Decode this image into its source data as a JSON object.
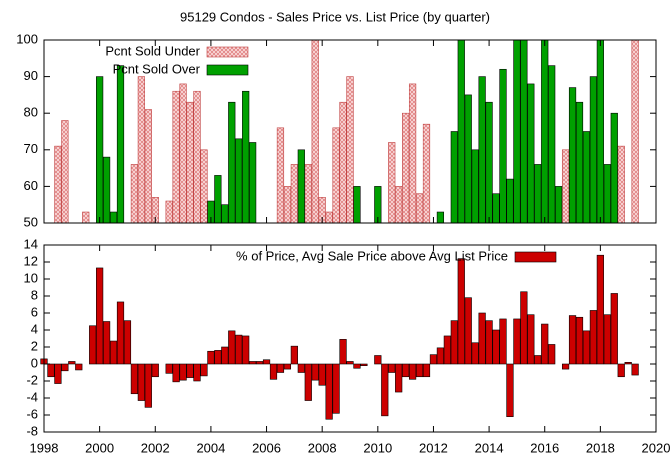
{
  "chart_data": [
    {
      "type": "bar",
      "title": "95129 Condos - Sales Price vs. List Price (by quarter)",
      "x": [
        1998,
        1998.25,
        1998.5,
        1998.75,
        1999,
        1999.25,
        1999.5,
        1999.75,
        2000,
        2000.25,
        2000.5,
        2000.75,
        2001,
        2001.25,
        2001.5,
        2001.75,
        2002,
        2002.25,
        2002.5,
        2002.75,
        2003,
        2003.25,
        2003.5,
        2003.75,
        2004,
        2004.25,
        2004.5,
        2004.75,
        2005,
        2005.25,
        2005.5,
        2005.75,
        2006,
        2006.25,
        2006.5,
        2006.75,
        2007,
        2007.25,
        2007.5,
        2007.75,
        2008,
        2008.25,
        2008.5,
        2008.75,
        2009,
        2009.25,
        2009.5,
        2009.75,
        2010,
        2010.25,
        2010.5,
        2010.75,
        2011,
        2011.25,
        2011.5,
        2011.75,
        2012,
        2012.25,
        2012.5,
        2012.75,
        2013,
        2013.25,
        2013.5,
        2013.75,
        2014,
        2014.25,
        2014.5,
        2014.75,
        2015,
        2015.25,
        2015.5,
        2015.75,
        2016,
        2016.25,
        2016.5,
        2016.75,
        2017,
        2017.25,
        2017.5,
        2017.75,
        2018,
        2018.25,
        2018.5,
        2018.75,
        2019,
        2019.25,
        2019.5,
        2019.75
      ],
      "series": [
        {
          "name": "Pcnt Sold Under",
          "color": "#f4a8a8",
          "values": [
            null,
            null,
            71,
            78,
            null,
            null,
            53,
            null,
            null,
            null,
            null,
            null,
            null,
            66,
            90,
            81,
            57,
            null,
            56,
            86,
            88,
            83,
            86,
            70,
            null,
            null,
            null,
            null,
            null,
            null,
            null,
            null,
            null,
            null,
            76,
            60,
            66,
            null,
            66,
            100,
            57,
            53,
            76,
            83,
            90,
            null,
            null,
            null,
            null,
            null,
            72,
            60,
            80,
            88,
            58,
            77,
            null,
            null,
            null,
            null,
            null,
            null,
            null,
            null,
            null,
            null,
            null,
            null,
            null,
            null,
            null,
            null,
            null,
            null,
            null,
            70,
            null,
            null,
            null,
            null,
            null,
            null,
            null,
            71,
            null,
            100,
            null,
            null
          ]
        },
        {
          "name": "Pcnt Sold Over",
          "color": "#00a000",
          "values": [
            null,
            null,
            null,
            null,
            null,
            null,
            null,
            null,
            90,
            68,
            53,
            93,
            null,
            null,
            null,
            null,
            null,
            null,
            null,
            null,
            null,
            null,
            null,
            null,
            56,
            63,
            55,
            83,
            73,
            86,
            72,
            null,
            null,
            null,
            null,
            null,
            null,
            70,
            null,
            null,
            null,
            null,
            null,
            null,
            null,
            60,
            null,
            null,
            60,
            null,
            null,
            null,
            null,
            null,
            null,
            null,
            null,
            53,
            null,
            75,
            100,
            85,
            70,
            90,
            83,
            58,
            92,
            62,
            100,
            100,
            88,
            66,
            100,
            93,
            60,
            null,
            87,
            83,
            75,
            90,
            100,
            66,
            80,
            null,
            null,
            null,
            null,
            null
          ]
        }
      ],
      "xlim": [
        1998,
        2020
      ],
      "xticks": [
        1998,
        2000,
        2002,
        2004,
        2006,
        2008,
        2010,
        2012,
        2014,
        2016,
        2018,
        2020
      ],
      "ylim": [
        50,
        100
      ],
      "yticks": [
        50,
        60,
        70,
        80,
        90,
        100
      ],
      "legend": "top-left"
    },
    {
      "type": "bar",
      "x": [
        1998,
        1998.25,
        1998.5,
        1998.75,
        1999,
        1999.25,
        1999.5,
        1999.75,
        2000,
        2000.25,
        2000.5,
        2000.75,
        2001,
        2001.25,
        2001.5,
        2001.75,
        2002,
        2002.25,
        2002.5,
        2002.75,
        2003,
        2003.25,
        2003.5,
        2003.75,
        2004,
        2004.25,
        2004.5,
        2004.75,
        2005,
        2005.25,
        2005.5,
        2005.75,
        2006,
        2006.25,
        2006.5,
        2006.75,
        2007,
        2007.25,
        2007.5,
        2007.75,
        2008,
        2008.25,
        2008.5,
        2008.75,
        2009,
        2009.25,
        2009.5,
        2009.75,
        2010,
        2010.25,
        2010.5,
        2010.75,
        2011,
        2011.25,
        2011.5,
        2011.75,
        2012,
        2012.25,
        2012.5,
        2012.75,
        2013,
        2013.25,
        2013.5,
        2013.75,
        2014,
        2014.25,
        2014.5,
        2014.75,
        2015,
        2015.25,
        2015.5,
        2015.75,
        2016,
        2016.25,
        2016.5,
        2016.75,
        2017,
        2017.25,
        2017.5,
        2017.75,
        2018,
        2018.25,
        2018.5,
        2018.75,
        2019,
        2019.25,
        2019.5,
        2019.75
      ],
      "series": [
        {
          "name": "% of Price, Avg Sale Price above Avg List Price",
          "color": "#cc0000",
          "values": [
            0.6,
            -1.5,
            -2.3,
            -0.8,
            0.3,
            -0.7,
            null,
            4.5,
            11.3,
            5.0,
            2.7,
            7.3,
            5.1,
            -3.5,
            -4.3,
            -5.1,
            -1.5,
            null,
            -1.1,
            -2.1,
            -1.9,
            -1.6,
            -2.0,
            -1.4,
            1.5,
            1.6,
            2.0,
            3.9,
            3.4,
            3.3,
            0.3,
            0.3,
            0.5,
            -1.8,
            -1.0,
            -0.6,
            2.1,
            -1.0,
            -4.3,
            -1.9,
            -2.5,
            -6.5,
            -5.8,
            2.9,
            0.3,
            -0.5,
            -0.2,
            null,
            1.0,
            -6.1,
            -1.0,
            -3.3,
            -1.5,
            -1.8,
            -1.5,
            -1.5,
            1.1,
            1.9,
            3.3,
            5.1,
            12.4,
            7.8,
            2.5,
            6.0,
            5.1,
            4.0,
            5.3,
            -6.2,
            5.3,
            8.5,
            5.8,
            1.0,
            4.7,
            2.3,
            null,
            -0.6,
            5.7,
            5.5,
            3.9,
            6.3,
            12.8,
            5.8,
            8.3,
            -1.5,
            0.2,
            -1.3,
            null,
            null
          ]
        }
      ],
      "xlim": [
        1998,
        2020
      ],
      "xticks": [
        1998,
        2000,
        2002,
        2004,
        2006,
        2008,
        2010,
        2012,
        2014,
        2016,
        2018,
        2020
      ],
      "ylim": [
        -8,
        14
      ],
      "yticks": [
        -8,
        -6,
        -4,
        -2,
        0,
        2,
        4,
        6,
        8,
        10,
        12,
        14
      ],
      "legend": "top-center"
    }
  ]
}
